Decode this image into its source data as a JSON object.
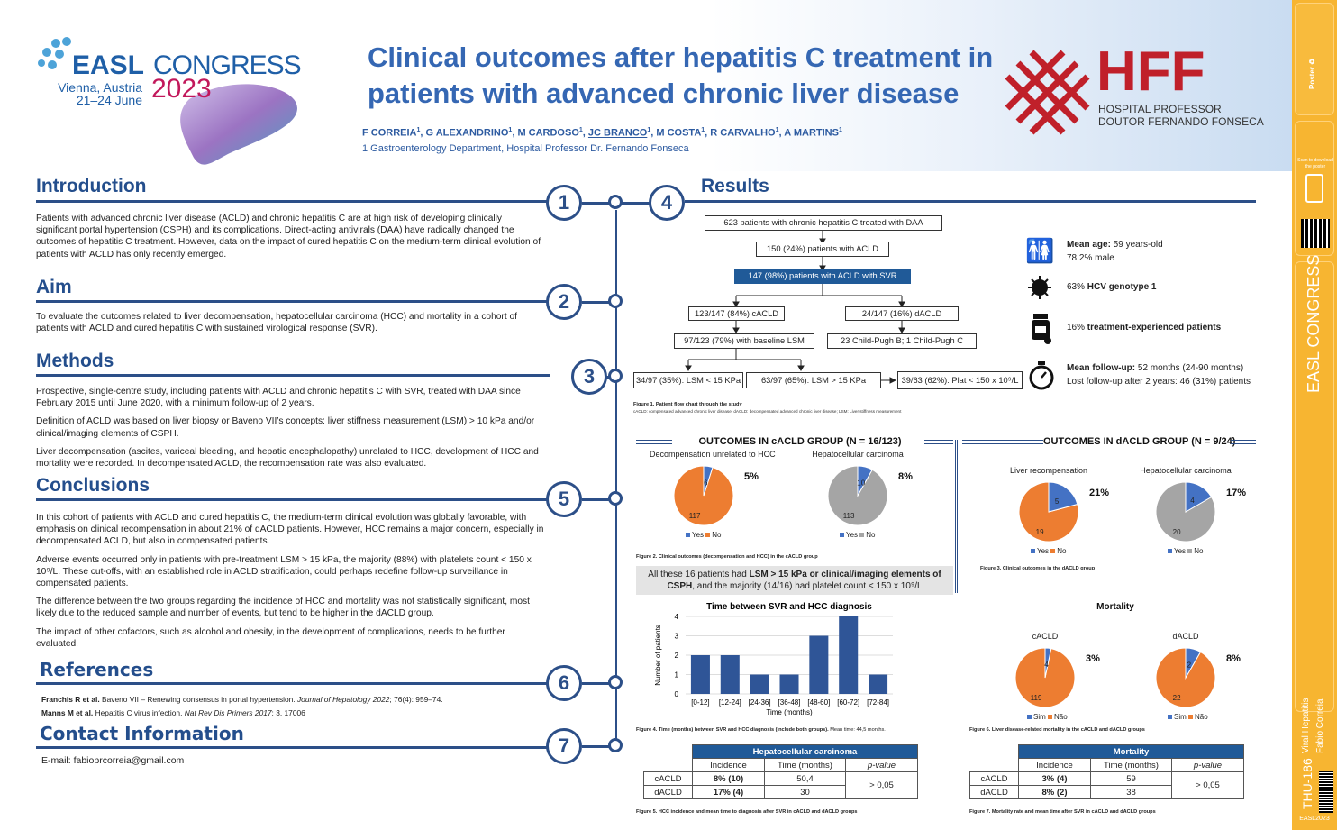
{
  "header": {
    "congress_name": "EASL",
    "congress_word": "CONGRESS",
    "location": "Vienna, Austria",
    "dates": "21–24 June",
    "year": "2023",
    "title_line1": "Clinical outcomes after hepatitis C treatment in",
    "title_line2": "patients with advanced chronic liver disease",
    "authors": [
      {
        "name": "F CORREIA",
        "sup": "1"
      },
      {
        "name": "G ALEXANDRINO",
        "sup": "1"
      },
      {
        "name": "M CARDOSO",
        "sup": "1"
      },
      {
        "name": "JC BRANCO",
        "sup": "1"
      },
      {
        "name": "M COSTA",
        "sup": "1"
      },
      {
        "name": "R CARVALHO",
        "sup": "1"
      },
      {
        "name": "A MARTINS",
        "sup": "1"
      }
    ],
    "affiliation": "1 Gastroenterology Department, Hospital Professor Dr. Fernando Fonseca",
    "hospital_abbr": "HFF",
    "hospital_line1": "HOSPITAL PROFESSOR",
    "hospital_line2": "DOUTOR FERNANDO FONSECA"
  },
  "sections": {
    "introduction": {
      "title": "Introduction",
      "number": "1",
      "text": "Patients with advanced chronic liver disease (ACLD) and chronic hepatitis C are at high risk of developing clinically significant portal hypertension (CSPH) and its complications. Direct-acting antivirals (DAA) have radically changed the outcomes of hepatitis C treatment. However, data on the impact of cured hepatitis C on the medium-term clinical evolution of patients with ACLD has only recently emerged."
    },
    "aim": {
      "title": "Aim",
      "number": "2",
      "text": "To evaluate the outcomes related to liver decompensation, hepatocellular carcinoma (HCC) and mortality in a cohort of patients with ACLD and cured hepatitis C with sustained virological response (SVR)."
    },
    "methods": {
      "title": "Methods",
      "number": "3",
      "paragraphs": [
        "Prospective, single-centre study, including patients with ACLD and chronic hepatitis C with SVR, treated with DAA since February 2015 until June 2020, with a minimum follow-up of 2 years.",
        "Definition of ACLD was based on liver biopsy or Baveno VII’s concepts: liver stiffness measurement (LSM) > 10 kPa and/or clinical/imaging elements of CSPH.",
        "Liver decompensation (ascites, variceal bleeding, and hepatic encephalopathy) unrelated to HCC, development of HCC and mortality were recorded. In decompensated ACLD, the recompensation rate was also evaluated."
      ]
    },
    "conclusions": {
      "title": "Conclusions",
      "number": "5",
      "paragraphs": [
        "In this cohort of patients with ACLD and cured hepatitis C, the medium-term clinical evolution was globally favorable, with emphasis on clinical recompensation in about 21% of dACLD patients. However, HCC remains a major concern, especially in decompensated ACLD, but also in compensated patients.",
        "Adverse events occurred only in patients with pre-treatment LSM > 15 kPa, the majority (88%) with platelets count < 150 x 10⁹/L. These cut-offs, with an established role in ACLD stratification, could perhaps redefine follow-up surveillance in compensated patients.",
        "The difference between the two groups regarding the incidence of HCC and mortality was not statistically significant, most likely due to the reduced sample and number of events, but tend to be higher in the dACLD group.",
        "The impact of other cofactors, such as alcohol and obesity, in the development of complications, needs to be further evaluated."
      ]
    },
    "references": {
      "title": "References",
      "number": "6",
      "items": [
        {
          "authors": "Franchis R et al.",
          "text": " Baveno VII – Renewing consensus in portal hypertension. ",
          "journal": "Journal of Hepatology 2022",
          "rest": "; 76(4): 959–74."
        },
        {
          "authors": "Manns M et al.",
          "text": " Hepatitis C virus infection. ",
          "journal": "Nat Rev Dis Primers 2017",
          "rest": "; 3, 17006"
        }
      ]
    },
    "contact": {
      "title": "Contact Information",
      "number": "7",
      "email": "E-mail: fabioprcorreia@gmail.com"
    },
    "results": {
      "title": "Results",
      "number": "4"
    }
  },
  "flow": {
    "b1": "623 patients with chronic hepatitis C treated with DAA",
    "b2": "150 (24%) patients with ACLD",
    "b3": "147 (98%) patients with ACLD with SVR",
    "b4": "123/147 (84%) cACLD",
    "b5": "24/147 (16%) dACLD",
    "b6": "97/123 (79%) with baseline LSM",
    "b7": "23 Child-Pugh B; 1 Child-Pugh C",
    "b8": "34/97 (35%): LSM < 15 KPa",
    "b9": "63/97 (65%): LSM > 15 KPa",
    "b10": "39/63 (62%):  Plat < 150 x 10⁹/L",
    "caption": "Figure 1. Patient flow chart through the study",
    "abbrev": "cACLD: compensated advanced chronic liver disease; dACLD: decompensated advanced chronic liver disease; LSM: Liver stiffness measurement"
  },
  "demographics": [
    {
      "icon": "people-icon",
      "bold": "Mean age:",
      "text": " 59 years-old",
      "line2": "78,2% male"
    },
    {
      "icon": "virus-icon",
      "pre": "63% ",
      "bold": "HCV genotype 1",
      "text": ""
    },
    {
      "icon": "pill-bottle-icon",
      "pre": "16% ",
      "bold": "treatment-experienced patients",
      "text": ""
    },
    {
      "icon": "stopwatch-icon",
      "bold": "Mean follow-up:",
      "text": " 52 months (24-90 months)",
      "line2": "Lost follow-up after 2 years: 46 (31%) patients"
    }
  ],
  "outcomes": {
    "cacld_title": "OUTCOMES IN cACLD GROUP (N = 16/123)",
    "dacld_title": "OUTCOMES IN dACLD GROUP (N = 9/24)",
    "fig2_caption": "Figure 2. Clinical outcomes (decompensation and HCC) in the cACLD group",
    "fig3_caption": "Figure 3. Clinical outcomes in the dACLD group",
    "note_pre": "All these 16 patients had ",
    "note_bold": "LSM > 15 kPa or clinical/imaging elements of CSPH",
    "note_post": ", and the majority (14/16) had platelet count < 150 x 10⁹/L"
  },
  "colors": {
    "blue": "#4472c4",
    "orange": "#ed7d31",
    "gray": "#a5a5a5",
    "navy": "#2f5597",
    "accent": "#2c4f88"
  },
  "chart_data": [
    {
      "type": "pie",
      "title": "Decompensation unrelated to HCC",
      "values": [
        6,
        117
      ],
      "labels": [
        "Yes",
        "No"
      ],
      "pct": "5%"
    },
    {
      "type": "pie",
      "title": "Hepatocellular carcinoma",
      "values": [
        10,
        113
      ],
      "labels": [
        "Yes",
        "No"
      ],
      "pct": "8%"
    },
    {
      "type": "pie",
      "title": "Liver recompensation",
      "values": [
        5,
        19
      ],
      "labels": [
        "Yes",
        "No"
      ],
      "pct": "21%"
    },
    {
      "type": "pie",
      "title": "Hepatocellular carcinoma",
      "values": [
        4,
        20
      ],
      "labels": [
        "Yes",
        "No"
      ],
      "pct": "17%"
    },
    {
      "type": "bar",
      "title": "Time between SVR and HCC diagnosis",
      "categories": [
        "[0-12]",
        "[12-24]",
        "[24-36]",
        "[36-48]",
        "[48-60]",
        "[60-72]",
        "[72-84]"
      ],
      "values": [
        2,
        2,
        1,
        1,
        3,
        4,
        1
      ],
      "xlabel": "Time (months)",
      "ylabel": "Number of patients",
      "ylim": [
        0,
        4
      ],
      "yticks": [
        "0",
        "1",
        "2",
        "3",
        "4"
      ]
    },
    {
      "type": "pie",
      "title": "cACLD",
      "group_title": "Mortality",
      "values": [
        4,
        119
      ],
      "labels": [
        "Sim",
        "Não"
      ],
      "pct": "3%"
    },
    {
      "type": "pie",
      "title": "dACLD",
      "values": [
        2,
        22
      ],
      "labels": [
        "Sim",
        "Não"
      ],
      "pct": "8%"
    }
  ],
  "fig4": {
    "caption": "Figure 4. Time (months) between SVR and HCC diagnosis (include both groups).",
    "extra": " Mean time: 44,5 months."
  },
  "fig6": {
    "caption": "Figure 6. Liver disease-related mortality in the cACLD and dACLD groups"
  },
  "table_hcc": {
    "title": "Hepatocellular carcinoma",
    "cols": [
      "Incidence",
      "Time (months)",
      "p-value"
    ],
    "rows": [
      [
        "cACLD",
        "8% (10)",
        "50,4"
      ],
      [
        "dACLD",
        "17% (4)",
        "30"
      ]
    ],
    "p": "> 0,05",
    "caption": "Figure 5. HCC incidence and mean time to diagnosis after SVR in cACLD and dACLD groups"
  },
  "table_mort": {
    "title": "Mortality",
    "cols": [
      "Incidence",
      "Time (months)",
      "p-value"
    ],
    "rows": [
      [
        "cACLD",
        "3% (4)",
        "59"
      ],
      [
        "dACLD",
        "8% (2)",
        "38"
      ]
    ],
    "p": "> 0,05",
    "caption": "Figure 7. Mortality rate and mean time after SVR in cACLD and dACLD groups"
  },
  "sidebar": {
    "scan": "Scan to download the poster",
    "sess_code": "THU-186",
    "topic": "Viral Hepatitis",
    "author": "Fabio Correia",
    "tag": "EASL2023"
  }
}
